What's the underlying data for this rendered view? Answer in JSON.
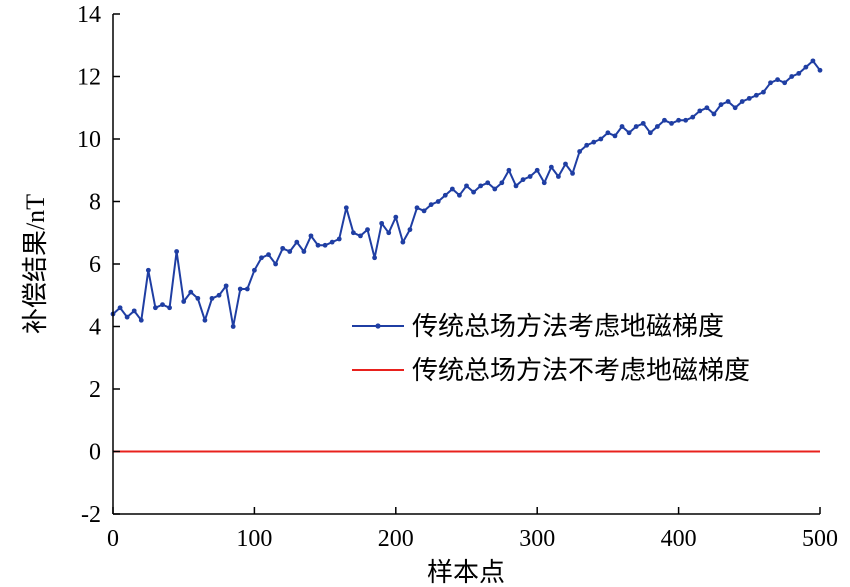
{
  "chart_data": {
    "type": "line",
    "xlabel": "样本点",
    "ylabel": "补偿结果/nT",
    "xlim": [
      0,
      500
    ],
    "ylim": [
      -2,
      14
    ],
    "x_ticks": [
      0,
      100,
      200,
      300,
      400,
      500
    ],
    "y_ticks": [
      -2,
      0,
      2,
      4,
      6,
      8,
      10,
      12,
      14
    ],
    "grid": false,
    "legend_position": "center-right",
    "series": [
      {
        "name": "传统总场方法考虑地磁梯度",
        "color": "#1f3ea3",
        "marker": "dot",
        "x": [
          0,
          5,
          10,
          15,
          20,
          25,
          30,
          35,
          40,
          45,
          50,
          55,
          60,
          65,
          70,
          75,
          80,
          85,
          90,
          95,
          100,
          105,
          110,
          115,
          120,
          125,
          130,
          135,
          140,
          145,
          150,
          155,
          160,
          165,
          170,
          175,
          180,
          185,
          190,
          195,
          200,
          205,
          210,
          215,
          220,
          225,
          230,
          235,
          240,
          245,
          250,
          255,
          260,
          265,
          270,
          275,
          280,
          285,
          290,
          295,
          300,
          305,
          310,
          315,
          320,
          325,
          330,
          335,
          340,
          345,
          350,
          355,
          360,
          365,
          370,
          375,
          380,
          385,
          390,
          395,
          400,
          405,
          410,
          415,
          420,
          425,
          430,
          435,
          440,
          445,
          450,
          455,
          460,
          465,
          470,
          475,
          480,
          485,
          490,
          495,
          500
        ],
        "y": [
          4.4,
          4.6,
          4.3,
          4.5,
          4.2,
          5.8,
          4.6,
          4.7,
          4.6,
          6.4,
          4.8,
          5.1,
          4.9,
          4.2,
          4.9,
          5.0,
          5.3,
          4.0,
          5.2,
          5.2,
          5.8,
          6.2,
          6.3,
          6.0,
          6.5,
          6.4,
          6.7,
          6.4,
          6.9,
          6.6,
          6.6,
          6.7,
          6.8,
          7.8,
          7.0,
          6.9,
          7.1,
          6.2,
          7.3,
          7.0,
          7.5,
          6.7,
          7.1,
          7.8,
          7.7,
          7.9,
          8.0,
          8.2,
          8.4,
          8.2,
          8.5,
          8.3,
          8.5,
          8.6,
          8.4,
          8.6,
          9.0,
          8.5,
          8.7,
          8.8,
          9.0,
          8.6,
          9.1,
          8.8,
          9.2,
          8.9,
          9.6,
          9.8,
          9.9,
          10.0,
          10.2,
          10.1,
          10.4,
          10.2,
          10.4,
          10.5,
          10.2,
          10.4,
          10.6,
          10.5,
          10.6,
          10.6,
          10.7,
          10.9,
          11.0,
          10.8,
          11.1,
          11.2,
          11.0,
          11.2,
          11.3,
          11.4,
          11.5,
          11.8,
          11.9,
          11.8,
          12.0,
          12.1,
          12.3,
          12.5,
          12.2
        ]
      },
      {
        "name": "传统总场方法不考虑地磁梯度",
        "color": "#e8211d",
        "marker": "none",
        "x": [
          0,
          100,
          200,
          300,
          400,
          500
        ],
        "y": [
          0.0,
          0.0,
          0.0,
          0.0,
          0.0,
          0.0
        ]
      }
    ]
  }
}
